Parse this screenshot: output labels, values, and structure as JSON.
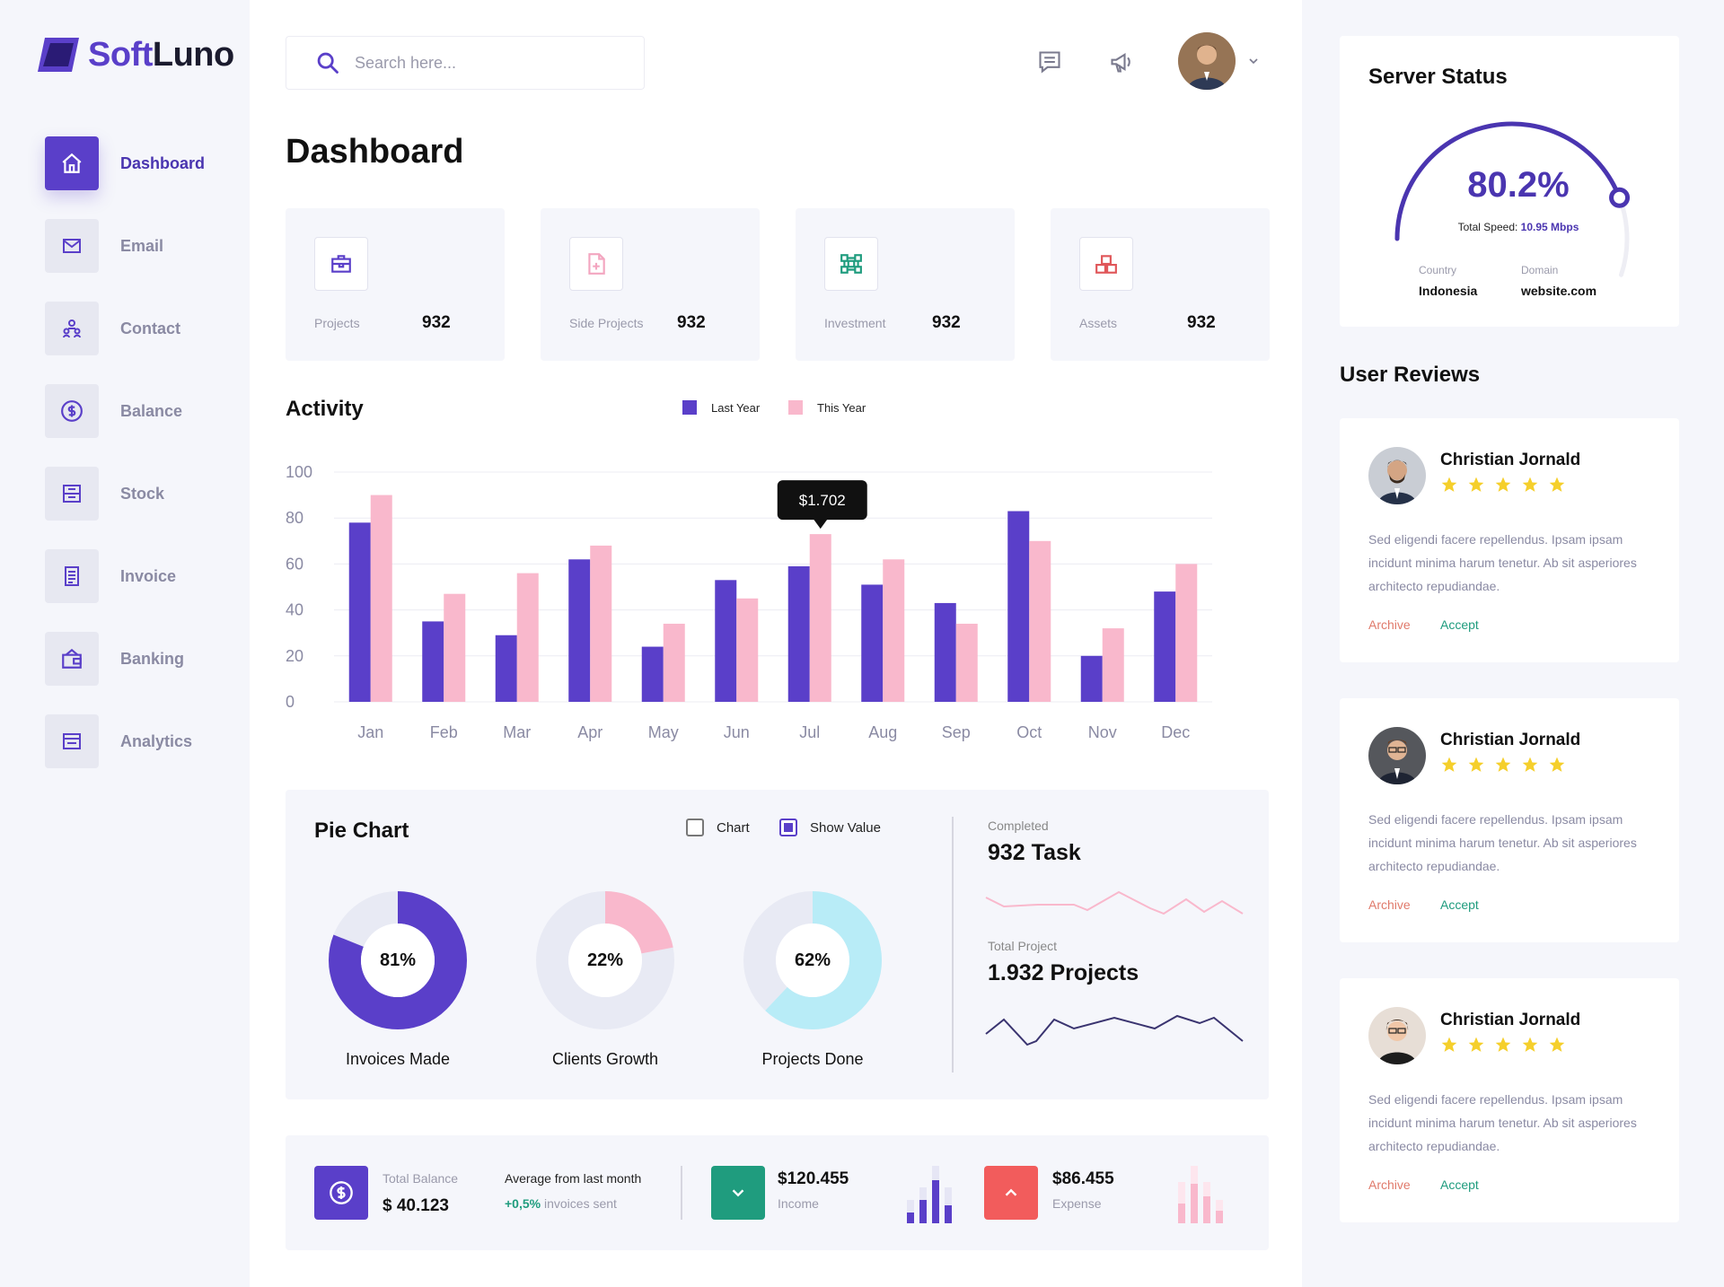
{
  "brand": {
    "soft": "Soft",
    "luno": "Luno"
  },
  "sidebar": {
    "items": [
      {
        "label": "Dashboard",
        "icon": "home-icon",
        "active": true
      },
      {
        "label": "Email",
        "icon": "mail-icon"
      },
      {
        "label": "Contact",
        "icon": "contacts-icon"
      },
      {
        "label": "Balance",
        "icon": "dollar-icon"
      },
      {
        "label": "Stock",
        "icon": "stock-icon"
      },
      {
        "label": "Invoice",
        "icon": "invoice-icon"
      },
      {
        "label": "Banking",
        "icon": "wallet-icon"
      },
      {
        "label": "Analytics",
        "icon": "analytics-icon"
      }
    ]
  },
  "header": {
    "search_placeholder": "Search here...",
    "icons": [
      "message-icon",
      "megaphone-icon",
      "chevron-down-icon"
    ]
  },
  "page_title": "Dashboard",
  "stats": [
    {
      "label": "Projects",
      "value": "932",
      "icon": "briefcase-icon",
      "color": "#5a3fc9"
    },
    {
      "label": "Side Projects",
      "value": "932",
      "icon": "file-plus-icon",
      "color": "#f3a6c0"
    },
    {
      "label": "Investment",
      "value": "932",
      "icon": "network-icon",
      "color": "#1f9c7e"
    },
    {
      "label": "Assets",
      "value": "932",
      "icon": "boxes-icon",
      "color": "#e0575a"
    }
  ],
  "activity": {
    "title": "Activity",
    "legend": {
      "last_year": "Last Year",
      "this_year": "This Year"
    },
    "tooltip": "$1.702"
  },
  "chart_data": {
    "type": "bar",
    "categories": [
      "Jan",
      "Feb",
      "Mar",
      "Apr",
      "May",
      "Jun",
      "Jul",
      "Aug",
      "Sep",
      "Oct",
      "Nov",
      "Dec"
    ],
    "series": [
      {
        "name": "Last Year",
        "color": "#5a3fc9",
        "values": [
          78,
          35,
          29,
          62,
          24,
          53,
          59,
          51,
          43,
          83,
          20,
          48
        ]
      },
      {
        "name": "This Year",
        "color": "#f9b8cc",
        "values": [
          90,
          47,
          56,
          68,
          34,
          45,
          73,
          62,
          34,
          70,
          32,
          60
        ]
      }
    ],
    "yticks": [
      0,
      20,
      40,
      60,
      80,
      100
    ],
    "ylim": [
      0,
      100
    ],
    "grid": true,
    "legend_position": "top",
    "tooltip": {
      "category": "Jul",
      "series": "This Year",
      "text": "$1.702"
    }
  },
  "pie": {
    "title": "Pie Chart",
    "chk_chart": "Chart",
    "chk_show_value": "Show Value",
    "donuts": [
      {
        "pct": "81%",
        "value": 81,
        "label": "Invoices Made",
        "color": "#5a3fc9"
      },
      {
        "pct": "22%",
        "value": 22,
        "label": "Clients Growth",
        "color": "#f9b8cc"
      },
      {
        "pct": "62%",
        "value": 62,
        "label": "Projects Done",
        "color": "#b8ecf7"
      }
    ],
    "completed_label": "Completed",
    "completed_value": "932 Task",
    "total_label": "Total  Project",
    "total_value": "1.932 Projects"
  },
  "balance": {
    "label": "Total Balance",
    "value": "$ 40.123",
    "avg_label": "Average from last month",
    "avg_change": "+0,5%",
    "avg_suffix": "invoices sent",
    "income_value": "$120.455",
    "income_label": "Income",
    "expense_value": "$86.455",
    "expense_label": "Expense"
  },
  "server": {
    "title": "Server Status",
    "pct": "80.2%",
    "pct_value": 80.2,
    "speed_label": "Total Speed:",
    "speed_value": "10.95 Mbps",
    "country_label": "Country",
    "country": "Indonesia",
    "domain_label": "Domain",
    "domain": "website.com"
  },
  "reviews": {
    "title": "User Reviews",
    "items": [
      {
        "name": "Christian Jornald",
        "stars": 5,
        "text": "Sed eligendi facere repellendus. Ipsam ipsam incidunt minima harum tenetur. Ab sit asperiores architecto repudiandae.",
        "archive": "Archive",
        "accept": "Accept"
      },
      {
        "name": "Christian Jornald",
        "stars": 5,
        "text": "Sed eligendi facere repellendus. Ipsam ipsam incidunt minima harum tenetur. Ab sit asperiores architecto repudiandae.",
        "archive": "Archive",
        "accept": "Accept"
      },
      {
        "name": "Christian Jornald",
        "stars": 5,
        "text": "Sed eligendi facere repellendus. Ipsam ipsam incidunt minima harum tenetur. Ab sit asperiores architecto repudiandae.",
        "archive": "Archive",
        "accept": "Accept"
      }
    ]
  }
}
